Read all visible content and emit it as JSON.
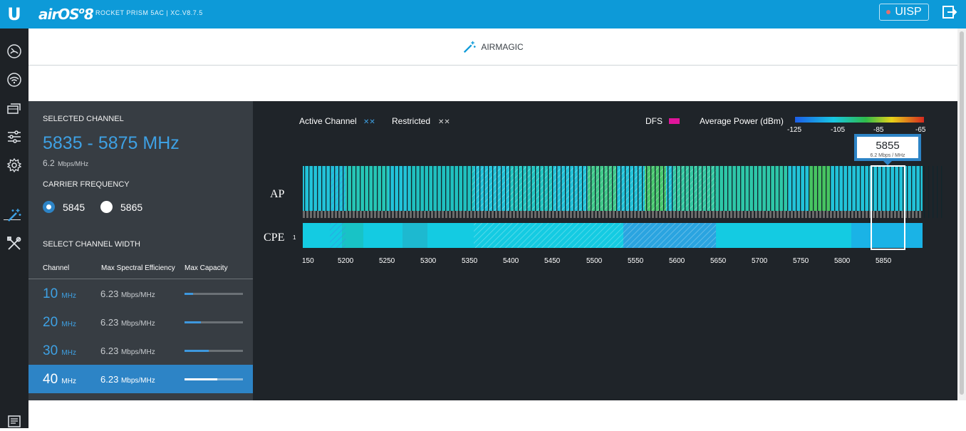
{
  "header": {
    "logo": "U",
    "product": "airOS",
    "version_glyph": "8",
    "device": "ROCKET PRISM 5AC | XC.V8.7.5",
    "uisp_label": "UISP",
    "logout_icon": "logout-icon"
  },
  "sidebar": {
    "items": [
      "dashboard-icon",
      "wireless-icon",
      "network-icon",
      "services-icon",
      "settings-icon",
      "airmagic-icon",
      "tools-icon",
      "log-icon"
    ],
    "active": "airmagic-icon"
  },
  "airmagic": {
    "title": "AIRMAGIC"
  },
  "selected": {
    "heading": "SELECTED CHANNEL",
    "range": "5835 - 5875 MHz",
    "efficiency_value": "6.2",
    "efficiency_unit": "Mbps/MHz",
    "carrier_heading": "CARRIER FREQUENCY",
    "carrier_options": [
      "5845",
      "5865"
    ],
    "carrier_selected": "5845",
    "width_heading": "SELECT CHANNEL WIDTH",
    "columns": [
      "Channel",
      "Max Spectral Efficiency",
      "Max Capacity"
    ],
    "widths": [
      {
        "value": "10",
        "unit": "MHz",
        "eff": "6.23",
        "eff_unit": "Mbps/MHz",
        "capacity": 0.15
      },
      {
        "value": "20",
        "unit": "MHz",
        "eff": "6.23",
        "eff_unit": "Mbps/MHz",
        "capacity": 0.28
      },
      {
        "value": "30",
        "unit": "MHz",
        "eff": "6.23",
        "eff_unit": "Mbps/MHz",
        "capacity": 0.42
      },
      {
        "value": "40",
        "unit": "MHz",
        "eff": "6.23",
        "eff_unit": "Mbps/MHz",
        "capacity": 0.56
      }
    ],
    "selected_width": "40"
  },
  "spectrum": {
    "legend": {
      "active": "Active Channel",
      "restricted": "Restricted",
      "dfs": "DFS",
      "power": "Average Power (dBm)",
      "power_ticks": [
        "-125",
        "-105",
        "-85",
        "-65"
      ]
    },
    "rows": [
      "AP",
      "CPE"
    ],
    "cpe_count": "1",
    "ticks": [
      "150",
      "5200",
      "5250",
      "5300",
      "5350",
      "5400",
      "5450",
      "5500",
      "5550",
      "5600",
      "5650",
      "5700",
      "5750",
      "5800",
      "5850"
    ],
    "tooltip": {
      "freq": "5855",
      "eff": "6.2 Mbps / MHz"
    },
    "colors": {
      "accent": "#0d9ad8",
      "dfs": "#e0159b",
      "cyan": "#18c7e2"
    }
  }
}
